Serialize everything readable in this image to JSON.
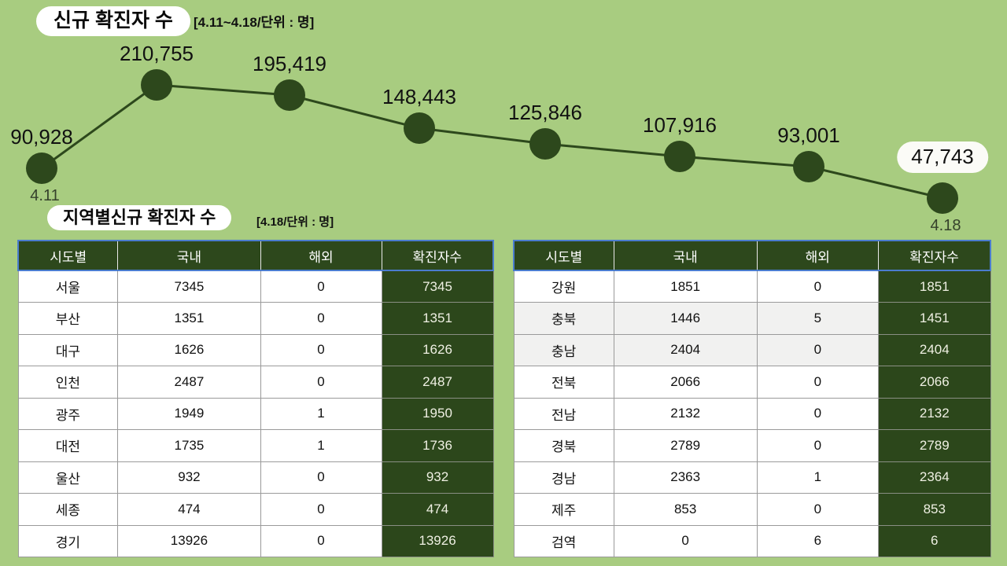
{
  "colors": {
    "background": "#a8cc80",
    "dark_green": "#2d481c",
    "table_header_border_blue": "#4a7cce",
    "alt_row_gray": "#f1f1f0",
    "badge_white": "#ffffff"
  },
  "chart": {
    "title": "신규 확진자 수",
    "subtitle": "[4.11~4.18/단위 : 명]"
  },
  "chart_data": {
    "type": "line",
    "title": "신규 확진자 수",
    "subtitle": "[4.11~4.18/단위 : 명]",
    "date_range": "4.11~4.18",
    "unit": "명",
    "values": [
      90928,
      210755,
      195419,
      148443,
      125846,
      107916,
      93001,
      47743
    ],
    "point_labels": [
      "90,928",
      "210,755",
      "195,419",
      "148,443",
      "125,846",
      "107,916",
      "93,001",
      "47,743"
    ],
    "visible_x_tick_labels": [
      {
        "point_index": 0,
        "label": "4.11"
      },
      {
        "point_index": 7,
        "label": "4.18"
      }
    ],
    "highlighted_point_index": 7,
    "legend": "none",
    "grid": false
  },
  "regional": {
    "title": "지역별신규 확진자 수",
    "subtitle": "[4.18/단위 : 명]",
    "columns": [
      "시도별",
      "국내",
      "해외",
      "확진자수"
    ],
    "left_table_rows": [
      {
        "region": "서울",
        "domestic": "7345",
        "overseas": "0",
        "total": "7345",
        "highlight": false
      },
      {
        "region": "부산",
        "domestic": "1351",
        "overseas": "0",
        "total": "1351",
        "highlight": false
      },
      {
        "region": "대구",
        "domestic": "1626",
        "overseas": "0",
        "total": "1626",
        "highlight": false
      },
      {
        "region": "인천",
        "domestic": "2487",
        "overseas": "0",
        "total": "2487",
        "highlight": false
      },
      {
        "region": "광주",
        "domestic": "1949",
        "overseas": "1",
        "total": "1950",
        "highlight": false
      },
      {
        "region": "대전",
        "domestic": "1735",
        "overseas": "1",
        "total": "1736",
        "highlight": false
      },
      {
        "region": "울산",
        "domestic": "932",
        "overseas": "0",
        "total": "932",
        "highlight": false
      },
      {
        "region": "세종",
        "domestic": "474",
        "overseas": "0",
        "total": "474",
        "highlight": false
      },
      {
        "region": "경기",
        "domestic": "13926",
        "overseas": "0",
        "total": "13926",
        "highlight": false
      }
    ],
    "right_table_rows": [
      {
        "region": "강원",
        "domestic": "1851",
        "overseas": "0",
        "total": "1851",
        "highlight": false
      },
      {
        "region": "충북",
        "domestic": "1446",
        "overseas": "5",
        "total": "1451",
        "highlight": true
      },
      {
        "region": "충남",
        "domestic": "2404",
        "overseas": "0",
        "total": "2404",
        "highlight": true
      },
      {
        "region": "전북",
        "domestic": "2066",
        "overseas": "0",
        "total": "2066",
        "highlight": false
      },
      {
        "region": "전남",
        "domestic": "2132",
        "overseas": "0",
        "total": "2132",
        "highlight": false
      },
      {
        "region": "경북",
        "domestic": "2789",
        "overseas": "0",
        "total": "2789",
        "highlight": false
      },
      {
        "region": "경남",
        "domestic": "2363",
        "overseas": "1",
        "total": "2364",
        "highlight": false
      },
      {
        "region": "제주",
        "domestic": "853",
        "overseas": "0",
        "total": "853",
        "highlight": false
      },
      {
        "region": "검역",
        "domestic": "0",
        "overseas": "6",
        "total": "6",
        "highlight": false
      }
    ]
  }
}
